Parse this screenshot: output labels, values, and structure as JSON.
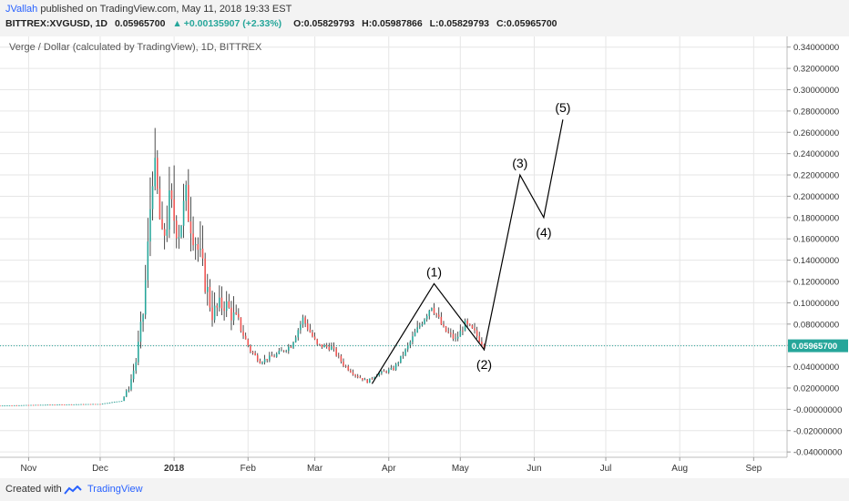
{
  "header": {
    "author": "JVallah",
    "published_text": "published on TradingView.com, May 11, 2018 19:33 EST",
    "symbol_line": {
      "symbol": "BITTREX:XVGUSD, 1D",
      "last": "0.05965700",
      "change": "+0.00135907 (+2.33%)",
      "open": "O:0.05829793",
      "high": "H:0.05987866",
      "low": "L:0.05829793",
      "close": "C:0.05965700"
    },
    "arrow_up": "▲"
  },
  "chart_title": "Verge / Dollar (calculated by TradingView), 1D, BITTREX",
  "chart_data": {
    "type": "candlestick",
    "x_ticks": [
      {
        "label": "Nov",
        "date": "2017-11-01"
      },
      {
        "label": "Dec",
        "date": "2017-12-01"
      },
      {
        "label": "2018",
        "date": "2018-01-01"
      },
      {
        "label": "Feb",
        "date": "2018-02-01"
      },
      {
        "label": "Mar",
        "date": "2018-03-01"
      },
      {
        "label": "Apr",
        "date": "2018-04-01"
      },
      {
        "label": "May",
        "date": "2018-05-01"
      },
      {
        "label": "Jun",
        "date": "2018-06-01"
      },
      {
        "label": "Jul",
        "date": "2018-07-01"
      },
      {
        "label": "Aug",
        "date": "2018-08-01"
      },
      {
        "label": "Sep",
        "date": "2018-09-01"
      }
    ],
    "y_ticks": [
      "0.34000000",
      "0.32000000",
      "0.30000000",
      "0.28000000",
      "0.26000000",
      "0.24000000",
      "0.22000000",
      "0.20000000",
      "0.18000000",
      "0.16000000",
      "0.14000000",
      "0.12000000",
      "0.10000000",
      "0.08000000",
      "0.06000000",
      "0.04000000",
      "0.02000000",
      "-0.00000000",
      "-0.02000000",
      "-0.04000000"
    ],
    "ylim": [
      -0.045,
      0.35
    ],
    "xlim": [
      "2017-10-20",
      "2018-09-15"
    ],
    "last_price": 0.059657,
    "last_price_label": "0.05965700",
    "colors": {
      "up": "#26a69a",
      "down": "#ef5350",
      "wick": "#222222",
      "wave": "#000000",
      "grid": "#e6e6e6",
      "last": "#26a69a"
    },
    "price_path": [
      {
        "date": "2017-10-20",
        "price": 0.0035
      },
      {
        "date": "2017-11-01",
        "price": 0.004
      },
      {
        "date": "2017-11-15",
        "price": 0.0045
      },
      {
        "date": "2017-12-01",
        "price": 0.005
      },
      {
        "date": "2017-12-10",
        "price": 0.008
      },
      {
        "date": "2017-12-13",
        "price": 0.02
      },
      {
        "date": "2017-12-16",
        "price": 0.045
      },
      {
        "date": "2017-12-19",
        "price": 0.09
      },
      {
        "date": "2017-12-21",
        "price": 0.15
      },
      {
        "date": "2017-12-23",
        "price": 0.23
      },
      {
        "date": "2017-12-25",
        "price": 0.2
      },
      {
        "date": "2017-12-27",
        "price": 0.155
      },
      {
        "date": "2017-12-30",
        "price": 0.19
      },
      {
        "date": "2018-01-03",
        "price": 0.17
      },
      {
        "date": "2018-01-06",
        "price": 0.195
      },
      {
        "date": "2018-01-09",
        "price": 0.17
      },
      {
        "date": "2018-01-13",
        "price": 0.13
      },
      {
        "date": "2018-01-17",
        "price": 0.09
      },
      {
        "date": "2018-01-22",
        "price": 0.1
      },
      {
        "date": "2018-01-28",
        "price": 0.08
      },
      {
        "date": "2018-02-02",
        "price": 0.055
      },
      {
        "date": "2018-02-06",
        "price": 0.045
      },
      {
        "date": "2018-02-12",
        "price": 0.05
      },
      {
        "date": "2018-02-19",
        "price": 0.06
      },
      {
        "date": "2018-02-24",
        "price": 0.085
      },
      {
        "date": "2018-03-02",
        "price": 0.06
      },
      {
        "date": "2018-03-08",
        "price": 0.058
      },
      {
        "date": "2018-03-13",
        "price": 0.042
      },
      {
        "date": "2018-03-18",
        "price": 0.032
      },
      {
        "date": "2018-03-23",
        "price": 0.026
      },
      {
        "date": "2018-03-27",
        "price": 0.033
      },
      {
        "date": "2018-04-03",
        "price": 0.038
      },
      {
        "date": "2018-04-08",
        "price": 0.055
      },
      {
        "date": "2018-04-13",
        "price": 0.075
      },
      {
        "date": "2018-04-19",
        "price": 0.098
      },
      {
        "date": "2018-04-24",
        "price": 0.075
      },
      {
        "date": "2018-04-29",
        "price": 0.065
      },
      {
        "date": "2018-05-03",
        "price": 0.08
      },
      {
        "date": "2018-05-07",
        "price": 0.072
      },
      {
        "date": "2018-05-11",
        "price": 0.0597
      }
    ],
    "wave_points": [
      {
        "label": "",
        "date": "2018-03-25",
        "price": 0.024
      },
      {
        "label": "(1)",
        "date": "2018-04-20",
        "price": 0.118
      },
      {
        "label": "(2)",
        "date": "2018-05-11",
        "price": 0.056
      },
      {
        "label": "(3)",
        "date": "2018-05-26",
        "price": 0.22
      },
      {
        "label": "(4)",
        "date": "2018-06-05",
        "price": 0.18
      },
      {
        "label": "(5)",
        "date": "2018-06-13",
        "price": 0.272
      }
    ]
  },
  "footer": {
    "created_with": "Created with",
    "brand": "TradingView"
  }
}
